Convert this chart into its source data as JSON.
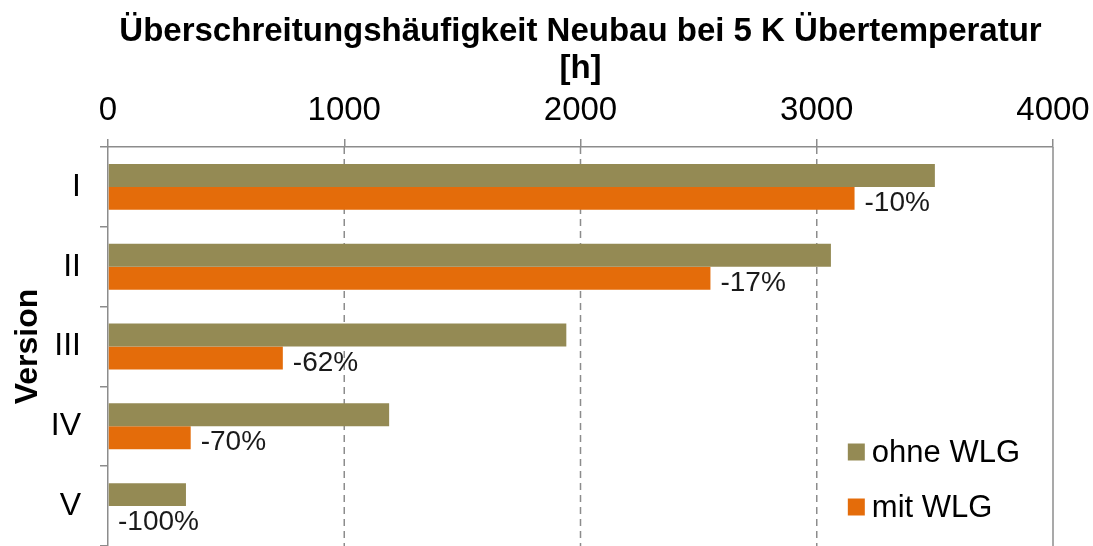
{
  "chart_data": {
    "type": "bar",
    "orientation": "horizontal",
    "title": "Überschreitungshäufigkeit Neubau bei 5 K Übertemperatur [h]",
    "ylabel": "Version",
    "categories": [
      "I",
      "II",
      "III",
      "IV",
      "V"
    ],
    "series": [
      {
        "name": "ohne WLG",
        "color": "#948a54",
        "values": [
          3500,
          3060,
          1940,
          1190,
          330
        ]
      },
      {
        "name": "mit WLG",
        "color": "#e46c0a",
        "values": [
          3160,
          2550,
          740,
          350,
          0
        ]
      }
    ],
    "annotations": [
      {
        "text": "-10%",
        "x": 3160,
        "y": "I"
      },
      {
        "text": "-17%",
        "x": 2550,
        "y": "II"
      },
      {
        "text": "-62%",
        "x": 740,
        "y": "III"
      },
      {
        "text": "-70%",
        "x": 350,
        "y": "IV"
      },
      {
        "text": "-100%",
        "x": 0,
        "y": "V"
      }
    ],
    "xlim": [
      0,
      4000
    ],
    "xticks": [
      0,
      1000,
      2000,
      3000,
      4000
    ],
    "grid": "x",
    "legend": "bottom right"
  }
}
